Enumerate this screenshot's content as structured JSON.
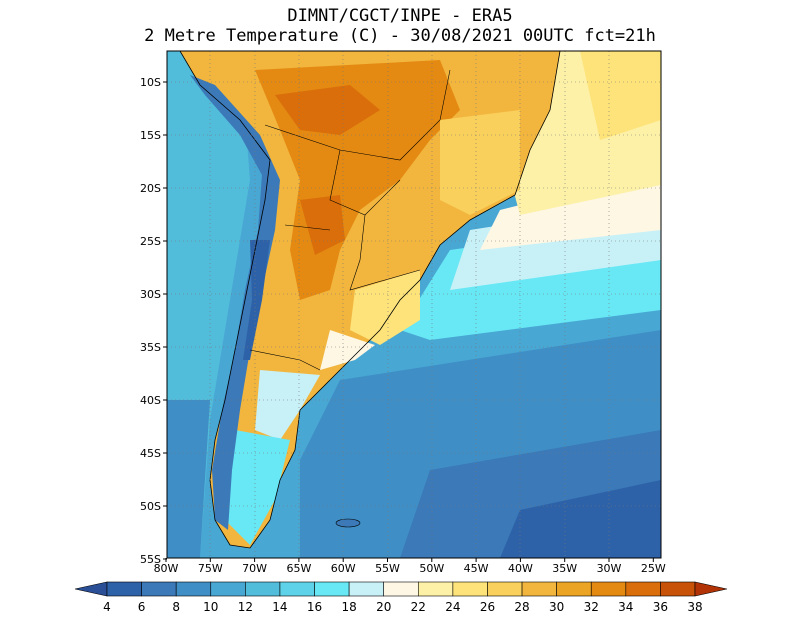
{
  "title_line1": "DIMNT/CGCT/INPE -  ERA5",
  "title_line2": "2 Metre Temperature (C) -  30/08/2021 00UTC fct=21h",
  "lat_labels": [
    "10S",
    "15S",
    "20S",
    "25S",
    "30S",
    "35S",
    "40S",
    "45S",
    "50S",
    "55S"
  ],
  "lon_labels": [
    "80W",
    "75W",
    "70W",
    "65W",
    "60W",
    "55W",
    "50W",
    "45W",
    "40W",
    "35W",
    "30W",
    "25W"
  ],
  "colorbar": {
    "labels": [
      "4",
      "6",
      "8",
      "10",
      "12",
      "14",
      "16",
      "18",
      "20",
      "22",
      "24",
      "26",
      "28",
      "30",
      "32",
      "34",
      "36",
      "38"
    ],
    "colors": [
      "#2e62a8",
      "#3b79b8",
      "#3f8fc6",
      "#48a7d3",
      "#52bcdb",
      "#5ed2e8",
      "#68e7f5",
      "#c8f1f7",
      "#fdf7e4",
      "#fdf1a8",
      "#fde37a",
      "#f9d05c",
      "#f2b63f",
      "#eba423",
      "#e48a12",
      "#d96e0a",
      "#c85208",
      "#b03a05"
    ],
    "low_color": "#2a4f96",
    "high_color": "#b23306"
  },
  "map_colors": {
    "ocean_cold": "#2e62a8",
    "ocean_mid": "#48a7d3",
    "ocean_warm": "#68e7f5",
    "land_hot": "#d96e0a",
    "land_warm": "#f2b63f",
    "andes": "#3b79b8"
  }
}
